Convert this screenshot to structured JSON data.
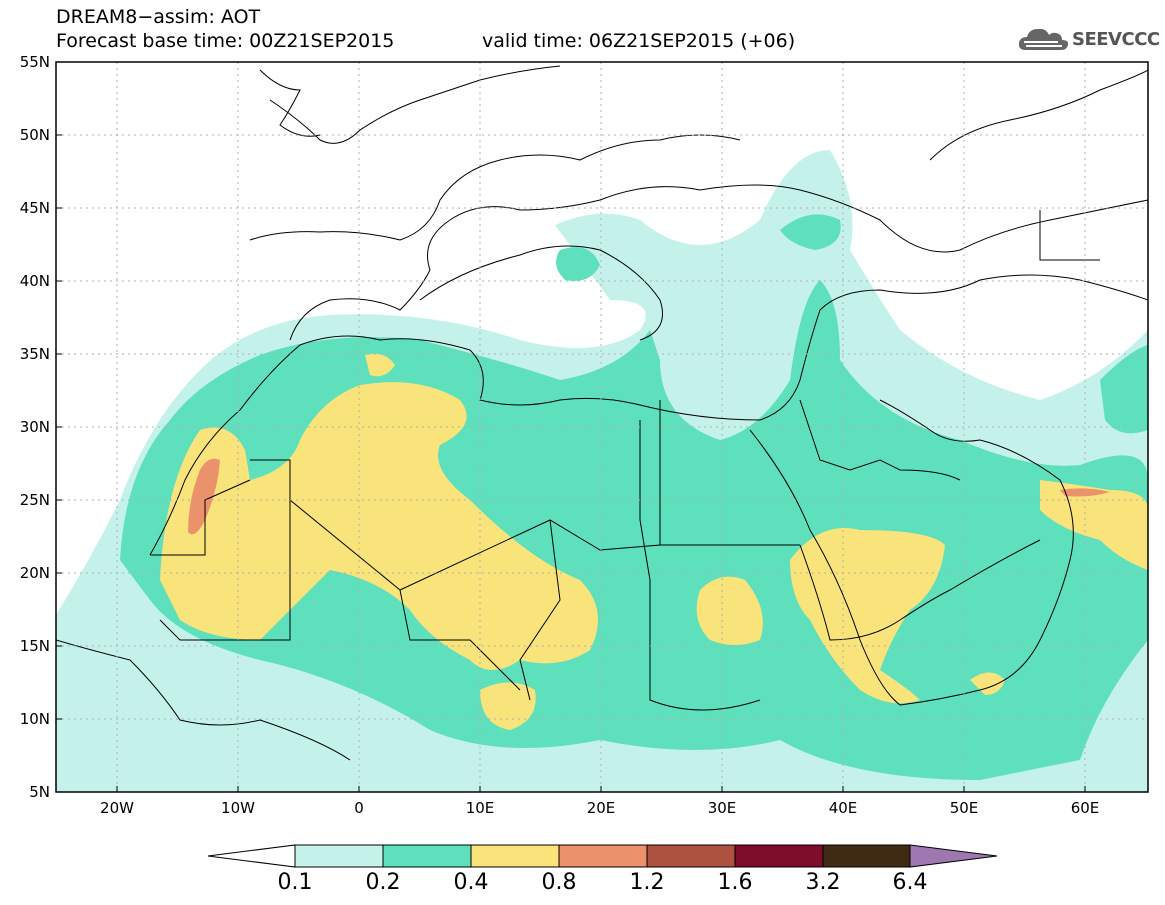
{
  "header": {
    "line1": "DREAM8−assim: AOT",
    "line2": "Forecast base time: 00Z21SEP2015",
    "line3": "valid time: 06Z21SEP2015 (+06)"
  },
  "logo": {
    "text": "SEEVCCC",
    "icon": "cloud-icon"
  },
  "map": {
    "lon_range": [
      -25,
      65
    ],
    "lat_range": [
      5,
      55
    ],
    "lat_ticks": [
      "55N",
      "50N",
      "45N",
      "40N",
      "35N",
      "30N",
      "25N",
      "20N",
      "15N",
      "10N",
      "5N"
    ],
    "lon_ticks": [
      "20W",
      "10W",
      "0",
      "10E",
      "20E",
      "30E",
      "40E",
      "50E",
      "60E"
    ]
  },
  "colorbar": {
    "levels": [
      "0.1",
      "0.2",
      "0.4",
      "0.8",
      "1.2",
      "1.6",
      "3.2",
      "6.4"
    ],
    "colors": [
      "#ffffff",
      "#c4f2ea",
      "#5ee0bd",
      "#f8e47a",
      "#eb926c",
      "#ad5140",
      "#7d0d2a",
      "#3e2a12",
      "#9f77b0"
    ]
  }
}
